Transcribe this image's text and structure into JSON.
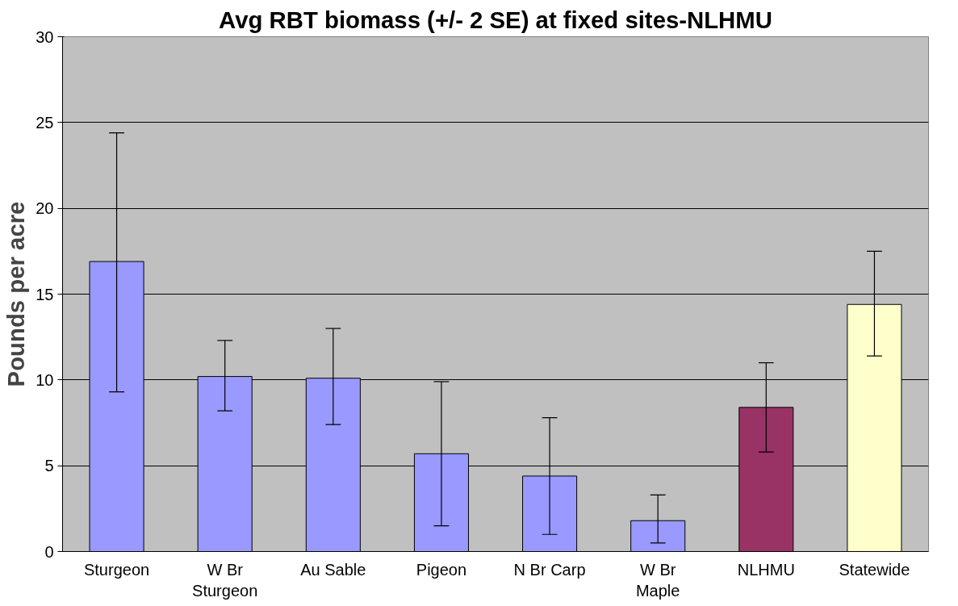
{
  "chart_data": {
    "type": "bar",
    "title": "Avg RBT biomass (+/- 2 SE) at fixed sites-NLHMU",
    "ylabel": "Pounds per acre",
    "categories": [
      "Sturgeon",
      "W Br\nSturgeon",
      "Au Sable",
      "Pigeon",
      "N Br Carp",
      "W Br\nMaple",
      "NLHMU",
      "Statewide"
    ],
    "values": [
      16.9,
      10.2,
      10.1,
      5.7,
      4.4,
      1.8,
      8.4,
      14.4
    ],
    "colors": [
      "#9999ff",
      "#9999ff",
      "#9999ff",
      "#9999ff",
      "#9999ff",
      "#9999ff",
      "#993366",
      "#ffffcc"
    ],
    "errors": [
      [
        9.3,
        24.4
      ],
      [
        8.2,
        12.3
      ],
      [
        7.4,
        13.0
      ],
      [
        1.5,
        9.9
      ],
      [
        1.0,
        7.8
      ],
      [
        0.5,
        3.3
      ],
      [
        5.8,
        11.0
      ],
      [
        11.4,
        17.5
      ]
    ],
    "ylim": [
      0,
      30
    ],
    "yticks": [
      0,
      5,
      10,
      15,
      20,
      25,
      30
    ],
    "grid": "y"
  }
}
